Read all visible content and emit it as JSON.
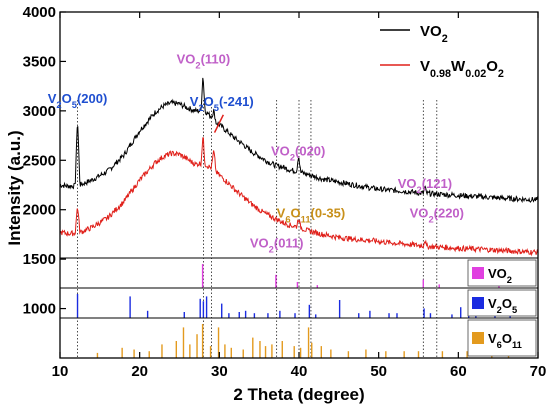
{
  "chart_data": {
    "type": "line",
    "xlabel": "2 Theta (degree)",
    "ylabel": "Intensity (a.u.)",
    "xlim": [
      10,
      70
    ],
    "ylim": [
      500,
      4000
    ],
    "x_ticks": [
      10,
      20,
      30,
      40,
      50,
      60,
      70
    ],
    "y_ticks": [
      1000,
      1500,
      2000,
      2500,
      3000,
      3500,
      4000
    ],
    "grid": false,
    "legend_placement": "top-right",
    "series": [
      {
        "name": "VO2",
        "name_main": "VO",
        "name_sub": "2",
        "color": "#000000",
        "points": [
          [
            10,
            2250
          ],
          [
            11,
            2240
          ],
          [
            11.9,
            2240
          ],
          [
            12.2,
            2940
          ],
          [
            12.5,
            2250
          ],
          [
            14,
            2300
          ],
          [
            16,
            2390
          ],
          [
            18,
            2550
          ],
          [
            20,
            2800
          ],
          [
            22,
            2990
          ],
          [
            23,
            3050
          ],
          [
            24,
            3080
          ],
          [
            25,
            3070
          ],
          [
            26,
            3030
          ],
          [
            27,
            3000
          ],
          [
            27.7,
            3000
          ],
          [
            27.95,
            3380
          ],
          [
            28.2,
            3000
          ],
          [
            29,
            2940
          ],
          [
            29.3,
            3000
          ],
          [
            29.6,
            2880
          ],
          [
            30,
            2860
          ],
          [
            31,
            2790
          ],
          [
            32,
            2720
          ],
          [
            33,
            2660
          ],
          [
            34,
            2590
          ],
          [
            35,
            2540
          ],
          [
            36,
            2490
          ],
          [
            37,
            2450
          ],
          [
            38,
            2430
          ],
          [
            39,
            2400
          ],
          [
            39.7,
            2390
          ],
          [
            39.95,
            2560
          ],
          [
            40.2,
            2380
          ],
          [
            41,
            2360
          ],
          [
            43,
            2310
          ],
          [
            45,
            2280
          ],
          [
            47,
            2250
          ],
          [
            49,
            2220
          ],
          [
            51,
            2200
          ],
          [
            53,
            2190
          ],
          [
            55,
            2170
          ],
          [
            55.6,
            2165
          ],
          [
            55.8,
            2235
          ],
          [
            56,
            2165
          ],
          [
            57,
            2160
          ],
          [
            59,
            2150
          ],
          [
            61,
            2140
          ],
          [
            63,
            2130
          ],
          [
            65,
            2120
          ],
          [
            67,
            2110
          ],
          [
            70,
            2100
          ]
        ]
      },
      {
        "name": "V0.98W0.02O2",
        "name_parts": [
          "V",
          "0.98",
          "W",
          "0.02",
          "O",
          "2"
        ],
        "color": "#e0201a",
        "points": [
          [
            10,
            1770
          ],
          [
            11,
            1760
          ],
          [
            11.9,
            1760
          ],
          [
            12.2,
            2050
          ],
          [
            12.5,
            1770
          ],
          [
            14,
            1820
          ],
          [
            16,
            1920
          ],
          [
            18,
            2080
          ],
          [
            20,
            2300
          ],
          [
            22,
            2480
          ],
          [
            23,
            2540
          ],
          [
            24,
            2570
          ],
          [
            25,
            2560
          ],
          [
            26,
            2510
          ],
          [
            27,
            2460
          ],
          [
            27.7,
            2470
          ],
          [
            27.95,
            2760
          ],
          [
            28.2,
            2460
          ],
          [
            29,
            2420
          ],
          [
            29.3,
            2600
          ],
          [
            29.6,
            2380
          ],
          [
            30,
            2350
          ],
          [
            31,
            2280
          ],
          [
            32,
            2200
          ],
          [
            33,
            2130
          ],
          [
            34,
            2060
          ],
          [
            35,
            2000
          ],
          [
            36,
            1950
          ],
          [
            37,
            1910
          ],
          [
            38,
            1870
          ],
          [
            39,
            1840
          ],
          [
            39.7,
            1830
          ],
          [
            39.95,
            1920
          ],
          [
            40.2,
            1820
          ],
          [
            41,
            1790
          ],
          [
            43,
            1750
          ],
          [
            45,
            1720
          ],
          [
            47,
            1700
          ],
          [
            49,
            1690
          ],
          [
            51,
            1670
          ],
          [
            53,
            1655
          ],
          [
            55,
            1640
          ],
          [
            55.6,
            1635
          ],
          [
            55.8,
            1700
          ],
          [
            56,
            1630
          ],
          [
            57,
            1625
          ],
          [
            59,
            1615
          ],
          [
            61,
            1605
          ],
          [
            63,
            1600
          ],
          [
            65,
            1590
          ],
          [
            67,
            1580
          ],
          [
            70,
            1570
          ]
        ]
      }
    ],
    "peak_labels": [
      {
        "main": "V",
        "sub1": "2",
        "mid": "O",
        "sub2": "5",
        "hkl": "(200)",
        "x": 12.2,
        "y": 3080,
        "color": "#1f4fd0"
      },
      {
        "main": "VO",
        "sub1": "2",
        "mid": "",
        "sub2": "",
        "hkl": "(110)",
        "x": 28.0,
        "y": 3480,
        "color": "#c060c8"
      },
      {
        "main": "V",
        "sub1": "2",
        "mid": "O",
        "sub2": "5",
        "hkl": "(-241)",
        "x": 30.3,
        "y": 3050,
        "color": "#1f4fd0"
      },
      {
        "main": "VO",
        "sub1": "2",
        "mid": "",
        "sub2": "",
        "hkl": "(020)",
        "x": 39.9,
        "y": 2550,
        "color": "#c060c8"
      },
      {
        "main": "VO",
        "sub1": "2",
        "mid": "",
        "sub2": "",
        "hkl": "(121)",
        "x": 55.8,
        "y": 2220,
        "color": "#c060c8"
      },
      {
        "main": "V",
        "sub1": "6",
        "mid": "O",
        "sub2": "11",
        "hkl": "(0-35)",
        "x": 41.5,
        "y": 1920,
        "color": "#c8901a"
      },
      {
        "main": "VO",
        "sub1": "2",
        "mid": "",
        "sub2": "",
        "hkl": "(220)",
        "x": 57.3,
        "y": 1920,
        "color": "#c060c8"
      },
      {
        "main": "VO",
        "sub1": "2",
        "mid": "",
        "sub2": "",
        "hkl": "(011)",
        "x": 37.2,
        "y": 1620,
        "color": "#c060c8"
      }
    ],
    "reference_panels": [
      {
        "label_main": "VO",
        "label_sub": "2",
        "label_mid": "",
        "label_sub2": "",
        "color": "#e040e0",
        "swatch_color": "#e040e0",
        "peaks": [
          [
            27.9,
            1.0
          ],
          [
            37.1,
            0.55
          ],
          [
            39.8,
            0.25
          ],
          [
            42.3,
            0.12
          ],
          [
            55.6,
            0.35
          ],
          [
            57.6,
            0.15
          ],
          [
            65.1,
            0.1
          ]
        ]
      },
      {
        "label_main": "V",
        "label_sub": "2",
        "label_mid": "O",
        "label_sub2": "5",
        "color": "#1a2be0",
        "swatch_color": "#1a2be0",
        "peaks": [
          [
            12.2,
            1.0
          ],
          [
            18.8,
            0.9
          ],
          [
            21.0,
            0.3
          ],
          [
            25.6,
            0.25
          ],
          [
            27.6,
            0.8
          ],
          [
            28.0,
            0.7
          ],
          [
            28.4,
            0.9
          ],
          [
            30.3,
            0.6
          ],
          [
            31.2,
            0.2
          ],
          [
            32.5,
            0.25
          ],
          [
            33.3,
            0.3
          ],
          [
            34.4,
            0.2
          ],
          [
            36.1,
            0.2
          ],
          [
            37.6,
            0.3
          ],
          [
            39.5,
            0.2
          ],
          [
            41.3,
            0.55
          ],
          [
            42.1,
            0.15
          ],
          [
            45.1,
            0.75
          ],
          [
            47.5,
            0.2
          ],
          [
            48.9,
            0.3
          ],
          [
            51.3,
            0.2
          ],
          [
            52.3,
            0.2
          ],
          [
            55.7,
            0.4
          ],
          [
            56.5,
            0.2
          ],
          [
            59.2,
            0.15
          ],
          [
            60.3,
            0.45
          ],
          [
            61.3,
            0.2
          ],
          [
            62.2,
            0.2
          ],
          [
            64.6,
            0.2
          ],
          [
            66.5,
            0.2
          ]
        ]
      },
      {
        "label_main": "V",
        "label_sub": "6",
        "label_mid": "O",
        "label_sub2": "11",
        "color": "#e39a1e",
        "swatch_color": "#e39a1e",
        "peaks": [
          [
            14.7,
            0.15
          ],
          [
            17.8,
            0.3
          ],
          [
            19.3,
            0.25
          ],
          [
            21.2,
            0.2
          ],
          [
            22.8,
            0.4
          ],
          [
            24.6,
            0.5
          ],
          [
            25.5,
            0.9
          ],
          [
            26.3,
            0.4
          ],
          [
            27.2,
            0.7
          ],
          [
            27.9,
            1.0
          ],
          [
            28.9,
            0.35
          ],
          [
            29.9,
            0.9
          ],
          [
            30.7,
            0.4
          ],
          [
            31.5,
            0.3
          ],
          [
            33.0,
            0.25
          ],
          [
            34.2,
            0.6
          ],
          [
            35.1,
            0.5
          ],
          [
            35.8,
            0.35
          ],
          [
            36.6,
            0.4
          ],
          [
            37.9,
            0.5
          ],
          [
            39.4,
            0.35
          ],
          [
            40.2,
            0.3
          ],
          [
            41.2,
            0.9
          ],
          [
            41.6,
            0.45
          ],
          [
            42.8,
            0.35
          ],
          [
            44.0,
            0.25
          ],
          [
            46.2,
            0.2
          ],
          [
            48.4,
            0.25
          ],
          [
            50.9,
            0.2
          ],
          [
            53.2,
            0.2
          ],
          [
            55.0,
            0.2
          ],
          [
            58.0,
            0.2
          ],
          [
            61.1,
            0.2
          ],
          [
            64.2,
            0.2
          ],
          [
            66.3,
            0.15
          ]
        ]
      }
    ],
    "dotted_lines_x": [
      12.2,
      28.0,
      29.0,
      37.2,
      40.0,
      41.5,
      55.6,
      57.3
    ]
  }
}
